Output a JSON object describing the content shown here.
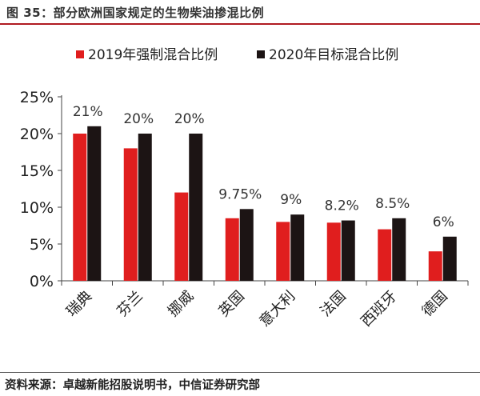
{
  "title": "图 35：部分欧洲国家规定的生物柴油掺混比例",
  "source": "资料来源：卓越新能招股说明书，中信证券研究部",
  "chart_data": {
    "type": "bar",
    "categories": [
      "瑞典",
      "芬兰",
      "挪威",
      "英国",
      "意大利",
      "法国",
      "西班牙",
      "德国"
    ],
    "series": [
      {
        "name": "2019年强制混合比例",
        "color": "#e01e1e",
        "values": [
          20,
          18,
          12,
          8.5,
          8,
          7.9,
          7,
          4
        ]
      },
      {
        "name": "2020年目标混合比例",
        "color": "#1c1414",
        "values": [
          21,
          20,
          20,
          9.75,
          9,
          8.2,
          8.5,
          6
        ]
      }
    ],
    "data_labels": [
      "21%",
      "20%",
      "20%",
      "9.75%",
      "9%",
      "8.2%",
      "8.5%",
      "6%"
    ],
    "y_ticks": [
      0,
      5,
      10,
      15,
      20,
      25
    ],
    "y_tick_labels": [
      "0%",
      "5%",
      "10%",
      "15%",
      "20%",
      "25%"
    ],
    "ylim": [
      0,
      25
    ],
    "legend_position": "top",
    "grid": false
  }
}
